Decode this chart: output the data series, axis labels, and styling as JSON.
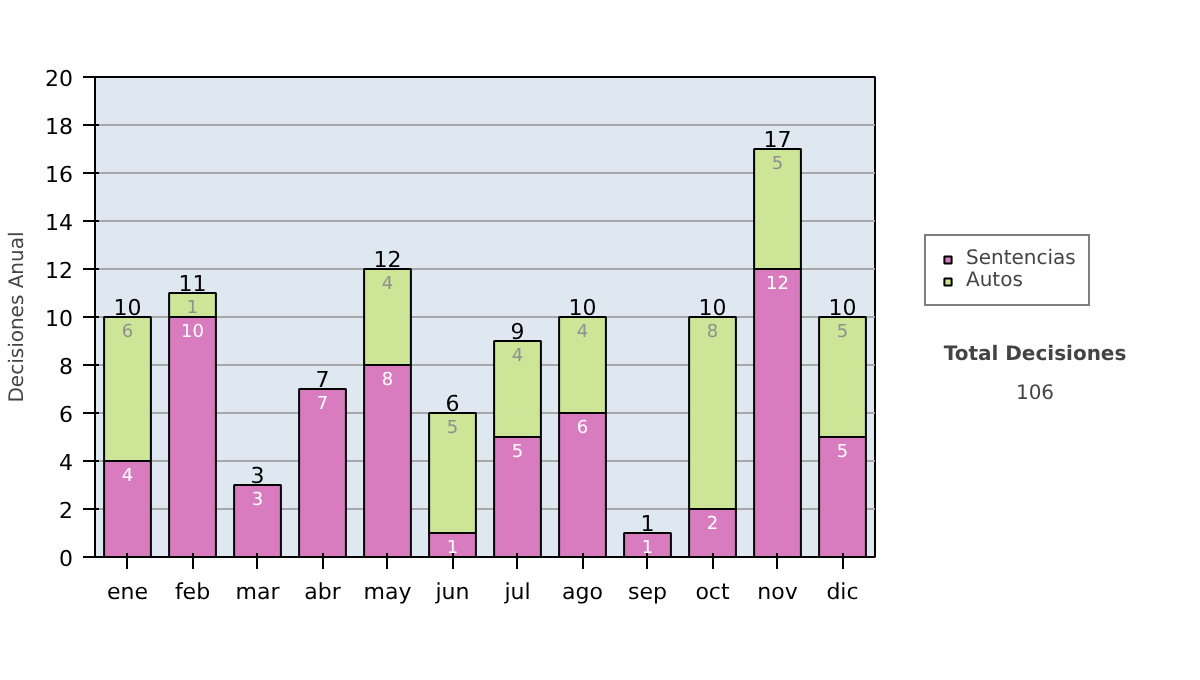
{
  "chart_data": {
    "type": "bar",
    "stacked": true,
    "ylabel": "Decisiones Anual",
    "categories": [
      "ene",
      "feb",
      "mar",
      "abr",
      "may",
      "jun",
      "jul",
      "ago",
      "sep",
      "oct",
      "nov",
      "dic"
    ],
    "series": [
      {
        "name": "Sentencias",
        "color": "#d87bbf",
        "values": [
          4,
          10,
          3,
          7,
          8,
          1,
          5,
          6,
          1,
          2,
          12,
          5
        ],
        "value_labels": [
          "4",
          "10",
          "3",
          "7",
          "8",
          "1",
          "5",
          "6",
          "1",
          "2",
          "12",
          "5"
        ]
      },
      {
        "name": "Autos",
        "color": "#cde597",
        "values": [
          6,
          1,
          0,
          0,
          4,
          5,
          4,
          4,
          0,
          8,
          5,
          5
        ],
        "value_labels": [
          "6",
          "1",
          null,
          null,
          "4",
          "5",
          "4",
          "4",
          null,
          "8",
          "5",
          "5"
        ]
      }
    ],
    "totals": [
      "10",
      "11",
      "3",
      "7",
      "12",
      "6",
      "9",
      "10",
      "1",
      "10",
      "17",
      "10"
    ],
    "ylim": [
      0,
      20
    ],
    "yticks": [
      0,
      2,
      4,
      6,
      8,
      10,
      12,
      14,
      16,
      18,
      20
    ],
    "grid": "y",
    "legend": "right",
    "annotations": [
      "Total Decisiones",
      "106"
    ]
  }
}
